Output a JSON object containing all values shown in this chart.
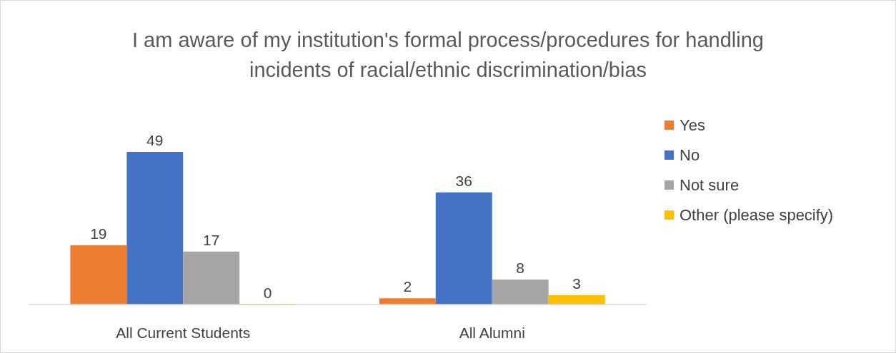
{
  "chart_data": {
    "type": "bar",
    "title": "I am aware of my institution's formal process/procedures for handling incidents of racial/ethnic discrimination/bias",
    "categories": [
      "All Current Students",
      "All Alumni"
    ],
    "series": [
      {
        "name": "Yes",
        "color": "#ed7d31",
        "values": [
          19,
          2
        ]
      },
      {
        "name": "No",
        "color": "#4472c4",
        "values": [
          49,
          36
        ]
      },
      {
        "name": "Not sure",
        "color": "#a5a5a5",
        "values": [
          17,
          8
        ]
      },
      {
        "name": "Other (please specify)",
        "color": "#ffc000",
        "values": [
          0,
          3
        ]
      }
    ],
    "data_labels": true,
    "legend": "right"
  }
}
